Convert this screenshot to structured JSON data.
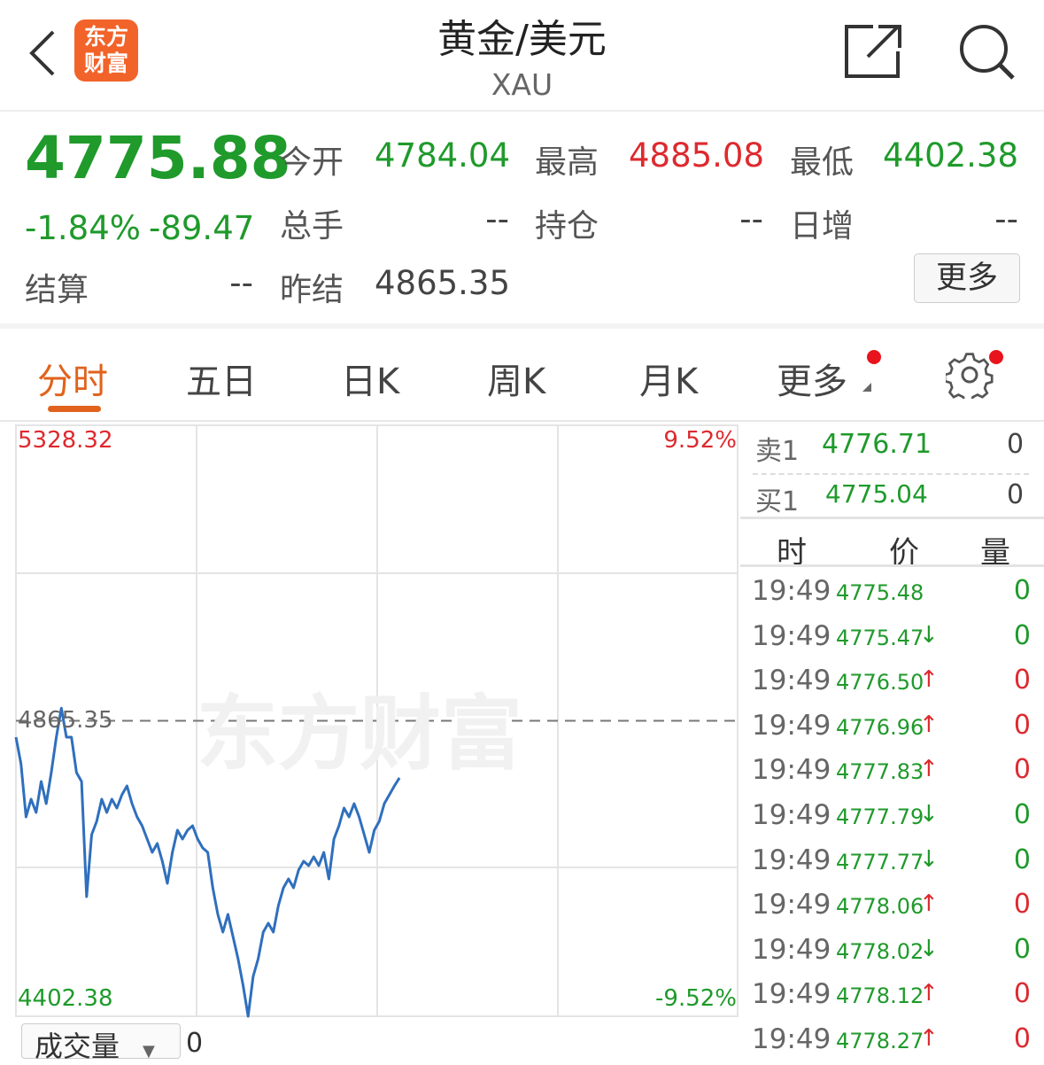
{
  "header": {
    "title": "黄金/美元",
    "subtitle": "XAU",
    "logo_text": "东方财富",
    "icons": [
      "back-icon",
      "share-icon",
      "search-icon"
    ]
  },
  "quote": {
    "price": "4775.88",
    "change_pct": "-1.84%",
    "change": "-89.47",
    "open_label": "今开",
    "open": "4784.04",
    "high_label": "最高",
    "high": "4885.08",
    "low_label": "最低",
    "low": "4402.38",
    "volume_label": "总手",
    "volume": "--",
    "oi_label": "持仓",
    "oi": "--",
    "daily_inc_label": "日增",
    "daily_inc": "--",
    "settle_label": "结算",
    "settle": "--",
    "prev_settle_label": "昨结",
    "prev_settle": "4865.35",
    "more_label": "更多"
  },
  "tabs": [
    {
      "label": "分时",
      "active": true
    },
    {
      "label": "五日"
    },
    {
      "label": "日K"
    },
    {
      "label": "周K"
    },
    {
      "label": "月K"
    },
    {
      "label": "更多"
    }
  ],
  "colors": {
    "up": "#dd2a2f",
    "down": "#1f9a2b",
    "line": "#2f6fbd",
    "accent": "#e0621c"
  },
  "chart_data": {
    "type": "line",
    "ylim": [
      4402.38,
      5328.32
    ],
    "ymax_label": "5328.32",
    "ymin_label": "4402.38",
    "ref_label": "4865.35",
    "ref_value": 4865.35,
    "pct_max_label": "9.52%",
    "pct_min_label": "-9.52%",
    "watermark": "东方财富",
    "grid": true,
    "values": [
      4839.7,
      4798.0,
      4714.7,
      4742.5,
      4721.7,
      4770.2,
      4735.5,
      4784.1,
      4839.7,
      4885.0,
      4839.7,
      4839.7,
      4784.1,
      4770.2,
      4589.8,
      4687.0,
      4707.8,
      4742.5,
      4721.7,
      4742.5,
      4728.6,
      4749.4,
      4763.3,
      4735.5,
      4714.7,
      4700.8,
      4680.0,
      4659.2,
      4673.1,
      4645.3,
      4610.6,
      4659.2,
      4693.9,
      4680.0,
      4693.9,
      4700.8,
      4680.0,
      4666.1,
      4659.2,
      4603.7,
      4562.0,
      4534.2,
      4562.0,
      4527.3,
      4492.6,
      4451.0,
      4402.4,
      4464.8,
      4492.6,
      4534.2,
      4548.1,
      4534.2,
      4575.9,
      4603.7,
      4617.5,
      4603.7,
      4631.4,
      4645.3,
      4638.4,
      4652.2,
      4638.4,
      4659.2,
      4617.5,
      4680.0,
      4700.8,
      4728.6,
      4714.7,
      4735.5,
      4714.7,
      4687.0,
      4659.2,
      4693.9,
      4707.8,
      4735.5,
      4749.4,
      4763.3,
      4775.88
    ]
  },
  "orderbook": {
    "sell_label": "卖1",
    "sell_price": "4776.71",
    "sell_vol": "0",
    "buy_label": "买1",
    "buy_price": "4775.04",
    "buy_vol": "0"
  },
  "ticks_header": {
    "time": "时",
    "price": "价",
    "vol": "量"
  },
  "ticks": [
    {
      "time": "19:49",
      "price": "4775.48",
      "arrow": "",
      "vol": "0",
      "dir": "down"
    },
    {
      "time": "19:49",
      "price": "4775.47",
      "arrow": "↓",
      "vol": "0",
      "dir": "down"
    },
    {
      "time": "19:49",
      "price": "4776.50",
      "arrow": "↑",
      "vol": "0",
      "dir": "up"
    },
    {
      "time": "19:49",
      "price": "4776.96",
      "arrow": "↑",
      "vol": "0",
      "dir": "up"
    },
    {
      "time": "19:49",
      "price": "4777.83",
      "arrow": "↑",
      "vol": "0",
      "dir": "up"
    },
    {
      "time": "19:49",
      "price": "4777.79",
      "arrow": "↓",
      "vol": "0",
      "dir": "down"
    },
    {
      "time": "19:49",
      "price": "4777.77",
      "arrow": "↓",
      "vol": "0",
      "dir": "down"
    },
    {
      "time": "19:49",
      "price": "4778.06",
      "arrow": "↑",
      "vol": "0",
      "dir": "up"
    },
    {
      "time": "19:49",
      "price": "4778.02",
      "arrow": "↓",
      "vol": "0",
      "dir": "down"
    },
    {
      "time": "19:49",
      "price": "4778.12",
      "arrow": "↑",
      "vol": "0",
      "dir": "up"
    },
    {
      "time": "19:49",
      "price": "4778.27",
      "arrow": "↑",
      "vol": "0",
      "dir": "up"
    }
  ],
  "volume_panel": {
    "selector_label": "成交量",
    "value": "0"
  }
}
